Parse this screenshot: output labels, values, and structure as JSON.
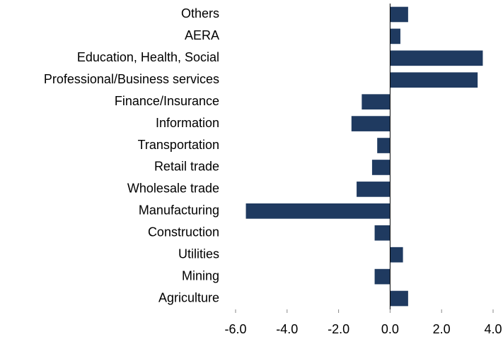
{
  "chart_data": {
    "type": "hbar",
    "categories": [
      "Others",
      "AERA",
      "Education, Health, Social",
      "Professional/Business services",
      "Finance/Insurance",
      "Information",
      "Transportation",
      "Retail trade",
      "Wholesale trade",
      "Manufacturing",
      "Construction",
      "Utilities",
      "Mining",
      "Agriculture"
    ],
    "values": [
      0.7,
      0.4,
      3.6,
      3.4,
      -1.1,
      -1.5,
      -0.5,
      -0.7,
      -1.3,
      -5.6,
      -0.6,
      0.5,
      -0.6,
      0.7
    ],
    "color": "#1f3a60",
    "xlim": [
      -6,
      4
    ],
    "xticks": [
      {
        "value": -6,
        "label": "-6.0"
      },
      {
        "value": -4,
        "label": "-4.0"
      },
      {
        "value": -2,
        "label": "-2.0"
      },
      {
        "value": 0,
        "label": "0.0"
      },
      {
        "value": 2,
        "label": "2.0"
      },
      {
        "value": 4,
        "label": "4.0"
      }
    ],
    "grid": false
  }
}
